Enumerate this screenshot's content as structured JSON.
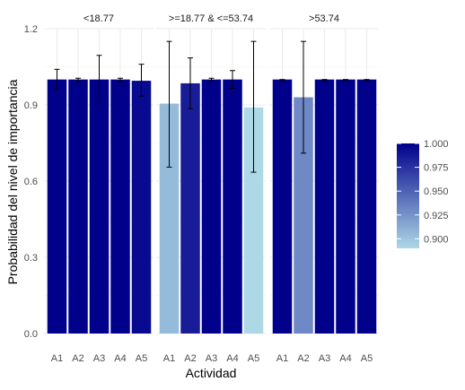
{
  "chart_data": {
    "type": "bar",
    "xlabel": "Actividad",
    "ylabel": "Probabilidad del nivel de importancia",
    "ylim": [
      0,
      1.2
    ],
    "y_ticks": [
      "0.0",
      "0.3",
      "0.6",
      "0.9",
      "1.2"
    ],
    "y_tick_values": [
      0,
      0.3,
      0.6,
      0.9,
      1.2
    ],
    "categories": [
      "A1",
      "A2",
      "A3",
      "A4",
      "A5"
    ],
    "panels": [
      {
        "label": "<18.77",
        "values": [
          1.0,
          1.0,
          1.0,
          1.0,
          0.995
        ],
        "err_low": [
          0.96,
          0.99,
          0.905,
          0.99,
          0.935
        ],
        "err_high": [
          1.04,
          1.005,
          1.095,
          1.005,
          1.06
        ]
      },
      {
        "label": ">=18.77 & <=53.74",
        "values": [
          0.905,
          0.985,
          1.0,
          1.0,
          0.89
        ],
        "err_low": [
          0.655,
          0.885,
          0.99,
          0.965,
          0.635
        ],
        "err_high": [
          1.15,
          1.085,
          1.005,
          1.035,
          1.15
        ]
      },
      {
        "label": ">53.74",
        "values": [
          1.0,
          0.93,
          1.0,
          1.0,
          1.0
        ],
        "err_low": [
          0.995,
          0.71,
          0.995,
          0.995,
          0.995
        ],
        "err_high": [
          1.0,
          1.15,
          1.0,
          1.0,
          1.0
        ]
      }
    ],
    "legend": {
      "ticks": [
        "1.000",
        "0.975",
        "0.950",
        "0.925",
        "0.900"
      ],
      "tick_values": [
        1.0,
        0.975,
        0.95,
        0.925,
        0.9
      ],
      "min": 0.89,
      "max": 1.0,
      "low_color": "#add8e6",
      "high_color": "#00008b",
      "placement": "right"
    },
    "grid": true
  }
}
